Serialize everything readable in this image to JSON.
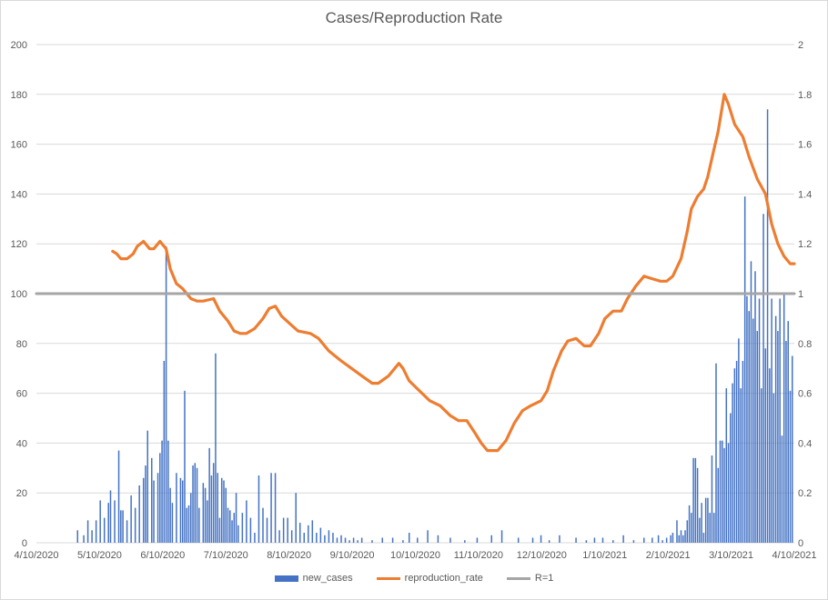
{
  "chart_data": {
    "type": "bar+line",
    "title": "Cases/Reproduction Rate",
    "x_ticks": [
      "4/10/2020",
      "5/10/2020",
      "6/10/2020",
      "7/10/2020",
      "8/10/2020",
      "9/10/2020",
      "10/10/2020",
      "11/10/2020",
      "12/10/2020",
      "1/10/2021",
      "2/10/2021",
      "3/10/2021",
      "4/10/2021"
    ],
    "x_range": [
      "2020-04-10",
      "2021-04-13"
    ],
    "y_left": {
      "min": 0,
      "max": 200,
      "step": 20,
      "ticks": [
        "0",
        "20",
        "40",
        "60",
        "80",
        "100",
        "120",
        "140",
        "160",
        "180",
        "200"
      ]
    },
    "y_right": {
      "min": 0,
      "max": 2,
      "step": 0.2,
      "ticks": [
        "0",
        "0.2",
        "0.4",
        "0.6",
        "0.8",
        "1",
        "1.2",
        "1.4",
        "1.6",
        "1.8",
        "2"
      ]
    },
    "grid": "horizontal",
    "legend_position": "bottom",
    "series": [
      {
        "name": "new_cases",
        "kind": "bar",
        "axis": "left",
        "color": "#4472c4",
        "points": [
          [
            "2020-04-30",
            5
          ],
          [
            "2020-05-03",
            3
          ],
          [
            "2020-05-05",
            9
          ],
          [
            "2020-05-07",
            5
          ],
          [
            "2020-05-09",
            9
          ],
          [
            "2020-05-11",
            17
          ],
          [
            "2020-05-13",
            10
          ],
          [
            "2020-05-15",
            16
          ],
          [
            "2020-05-16",
            21
          ],
          [
            "2020-05-18",
            17
          ],
          [
            "2020-05-20",
            37
          ],
          [
            "2020-05-21",
            13
          ],
          [
            "2020-05-22",
            13
          ],
          [
            "2020-05-24",
            9
          ],
          [
            "2020-05-26",
            19
          ],
          [
            "2020-05-28",
            14
          ],
          [
            "2020-05-30",
            23
          ],
          [
            "2020-06-01",
            26
          ],
          [
            "2020-06-02",
            31
          ],
          [
            "2020-06-03",
            45
          ],
          [
            "2020-06-05",
            34
          ],
          [
            "2020-06-06",
            25
          ],
          [
            "2020-06-08",
            28
          ],
          [
            "2020-06-09",
            36
          ],
          [
            "2020-06-10",
            41
          ],
          [
            "2020-06-11",
            73
          ],
          [
            "2020-06-12",
            119
          ],
          [
            "2020-06-13",
            41
          ],
          [
            "2020-06-14",
            22
          ],
          [
            "2020-06-15",
            16
          ],
          [
            "2020-06-17",
            28
          ],
          [
            "2020-06-19",
            26
          ],
          [
            "2020-06-20",
            25
          ],
          [
            "2020-06-21",
            61
          ],
          [
            "2020-06-22",
            14
          ],
          [
            "2020-06-23",
            15
          ],
          [
            "2020-06-24",
            20
          ],
          [
            "2020-06-25",
            31
          ],
          [
            "2020-06-26",
            32
          ],
          [
            "2020-06-27",
            30
          ],
          [
            "2020-06-28",
            14
          ],
          [
            "2020-06-30",
            24
          ],
          [
            "2020-07-01",
            22
          ],
          [
            "2020-07-02",
            17
          ],
          [
            "2020-07-03",
            38
          ],
          [
            "2020-07-04",
            27
          ],
          [
            "2020-07-05",
            32
          ],
          [
            "2020-07-06",
            76
          ],
          [
            "2020-07-07",
            28
          ],
          [
            "2020-07-08",
            10
          ],
          [
            "2020-07-09",
            26
          ],
          [
            "2020-07-10",
            25
          ],
          [
            "2020-07-11",
            22
          ],
          [
            "2020-07-12",
            14
          ],
          [
            "2020-07-13",
            13
          ],
          [
            "2020-07-14",
            9
          ],
          [
            "2020-07-15",
            12
          ],
          [
            "2020-07-16",
            20
          ],
          [
            "2020-07-17",
            7
          ],
          [
            "2020-07-19",
            12
          ],
          [
            "2020-07-21",
            17
          ],
          [
            "2020-07-23",
            10
          ],
          [
            "2020-07-25",
            4
          ],
          [
            "2020-07-27",
            27
          ],
          [
            "2020-07-29",
            14
          ],
          [
            "2020-07-31",
            10
          ],
          [
            "2020-08-02",
            28
          ],
          [
            "2020-08-04",
            28
          ],
          [
            "2020-08-06",
            5
          ],
          [
            "2020-08-08",
            10
          ],
          [
            "2020-08-10",
            10
          ],
          [
            "2020-08-12",
            5
          ],
          [
            "2020-08-14",
            20
          ],
          [
            "2020-08-16",
            8
          ],
          [
            "2020-08-18",
            4
          ],
          [
            "2020-08-20",
            7
          ],
          [
            "2020-08-22",
            9
          ],
          [
            "2020-08-24",
            4
          ],
          [
            "2020-08-26",
            6
          ],
          [
            "2020-08-28",
            3
          ],
          [
            "2020-08-30",
            5
          ],
          [
            "2020-09-01",
            4
          ],
          [
            "2020-09-03",
            2
          ],
          [
            "2020-09-05",
            3
          ],
          [
            "2020-09-07",
            2
          ],
          [
            "2020-09-09",
            1
          ],
          [
            "2020-09-11",
            2
          ],
          [
            "2020-09-13",
            1
          ],
          [
            "2020-09-15",
            2
          ],
          [
            "2020-09-20",
            1
          ],
          [
            "2020-09-25",
            2
          ],
          [
            "2020-09-30",
            2
          ],
          [
            "2020-10-05",
            1
          ],
          [
            "2020-10-08",
            4
          ],
          [
            "2020-10-12",
            2
          ],
          [
            "2020-10-17",
            5
          ],
          [
            "2020-10-22",
            3
          ],
          [
            "2020-10-28",
            2
          ],
          [
            "2020-11-04",
            1
          ],
          [
            "2020-11-10",
            2
          ],
          [
            "2020-11-17",
            3
          ],
          [
            "2020-11-22",
            5
          ],
          [
            "2020-11-30",
            2
          ],
          [
            "2020-12-07",
            2
          ],
          [
            "2020-12-11",
            3
          ],
          [
            "2020-12-15",
            1
          ],
          [
            "2020-12-20",
            3
          ],
          [
            "2020-12-28",
            2
          ],
          [
            "2021-01-02",
            1
          ],
          [
            "2021-01-06",
            2
          ],
          [
            "2021-01-10",
            2
          ],
          [
            "2021-01-15",
            1
          ],
          [
            "2021-01-20",
            3
          ],
          [
            "2021-01-25",
            1
          ],
          [
            "2021-01-30",
            2
          ],
          [
            "2021-02-03",
            2
          ],
          [
            "2021-02-06",
            3
          ],
          [
            "2021-02-08",
            1
          ],
          [
            "2021-02-10",
            2
          ],
          [
            "2021-02-12",
            3
          ],
          [
            "2021-02-13",
            4
          ],
          [
            "2021-02-15",
            9
          ],
          [
            "2021-02-16",
            3
          ],
          [
            "2021-02-17",
            5
          ],
          [
            "2021-02-18",
            3
          ],
          [
            "2021-02-19",
            5
          ],
          [
            "2021-02-20",
            9
          ],
          [
            "2021-02-21",
            15
          ],
          [
            "2021-02-22",
            12
          ],
          [
            "2021-02-23",
            34
          ],
          [
            "2021-02-24",
            34
          ],
          [
            "2021-02-25",
            30
          ],
          [
            "2021-02-26",
            10
          ],
          [
            "2021-02-27",
            16
          ],
          [
            "2021-02-28",
            4
          ],
          [
            "2021-03-01",
            18
          ],
          [
            "2021-03-02",
            18
          ],
          [
            "2021-03-03",
            12
          ],
          [
            "2021-03-04",
            35
          ],
          [
            "2021-03-05",
            12
          ],
          [
            "2021-03-06",
            72
          ],
          [
            "2021-03-07",
            30
          ],
          [
            "2021-03-08",
            41
          ],
          [
            "2021-03-09",
            41
          ],
          [
            "2021-03-10",
            38
          ],
          [
            "2021-03-11",
            62
          ],
          [
            "2021-03-12",
            40
          ],
          [
            "2021-03-13",
            52
          ],
          [
            "2021-03-14",
            64
          ],
          [
            "2021-03-15",
            70
          ],
          [
            "2021-03-16",
            73
          ],
          [
            "2021-03-17",
            82
          ],
          [
            "2021-03-18",
            62
          ],
          [
            "2021-03-19",
            73
          ],
          [
            "2021-03-20",
            139
          ],
          [
            "2021-03-21",
            99
          ],
          [
            "2021-03-22",
            93
          ],
          [
            "2021-03-23",
            113
          ],
          [
            "2021-03-24",
            90
          ],
          [
            "2021-03-25",
            109
          ],
          [
            "2021-03-26",
            85
          ],
          [
            "2021-03-27",
            98
          ],
          [
            "2021-03-28",
            62
          ],
          [
            "2021-03-29",
            132
          ],
          [
            "2021-03-30",
            78
          ],
          [
            "2021-03-31",
            174
          ],
          [
            "2021-04-01",
            70
          ],
          [
            "2021-04-02",
            98
          ],
          [
            "2021-04-03",
            60
          ],
          [
            "2021-04-04",
            91
          ],
          [
            "2021-04-05",
            85
          ],
          [
            "2021-04-06",
            98
          ],
          [
            "2021-04-07",
            43
          ],
          [
            "2021-04-08",
            100
          ],
          [
            "2021-04-09",
            81
          ],
          [
            "2021-04-10",
            89
          ],
          [
            "2021-04-11",
            61
          ],
          [
            "2021-04-12",
            75
          ]
        ]
      },
      {
        "name": "reproduction_rate",
        "kind": "line",
        "axis": "right",
        "color": "#ed7d31",
        "points": [
          [
            "2020-05-17",
            1.17
          ],
          [
            "2020-05-19",
            1.16
          ],
          [
            "2020-05-21",
            1.14
          ],
          [
            "2020-05-24",
            1.14
          ],
          [
            "2020-05-27",
            1.16
          ],
          [
            "2020-05-29",
            1.19
          ],
          [
            "2020-06-01",
            1.21
          ],
          [
            "2020-06-04",
            1.18
          ],
          [
            "2020-06-06",
            1.18
          ],
          [
            "2020-06-09",
            1.21
          ],
          [
            "2020-06-12",
            1.18
          ],
          [
            "2020-06-14",
            1.1
          ],
          [
            "2020-06-17",
            1.04
          ],
          [
            "2020-06-20",
            1.02
          ],
          [
            "2020-06-24",
            0.98
          ],
          [
            "2020-06-27",
            0.97
          ],
          [
            "2020-06-30",
            0.97
          ],
          [
            "2020-07-05",
            0.98
          ],
          [
            "2020-07-08",
            0.93
          ],
          [
            "2020-07-12",
            0.89
          ],
          [
            "2020-07-15",
            0.85
          ],
          [
            "2020-07-18",
            0.84
          ],
          [
            "2020-07-21",
            0.84
          ],
          [
            "2020-07-25",
            0.86
          ],
          [
            "2020-07-29",
            0.9
          ],
          [
            "2020-08-01",
            0.94
          ],
          [
            "2020-08-04",
            0.95
          ],
          [
            "2020-08-07",
            0.91
          ],
          [
            "2020-08-11",
            0.88
          ],
          [
            "2020-08-15",
            0.85
          ],
          [
            "2020-08-21",
            0.84
          ],
          [
            "2020-08-25",
            0.82
          ],
          [
            "2020-08-30",
            0.77
          ],
          [
            "2020-09-05",
            0.73
          ],
          [
            "2020-09-10",
            0.7
          ],
          [
            "2020-09-15",
            0.67
          ],
          [
            "2020-09-20",
            0.64
          ],
          [
            "2020-09-23",
            0.64
          ],
          [
            "2020-09-28",
            0.67
          ],
          [
            "2020-10-03",
            0.72
          ],
          [
            "2020-10-05",
            0.7
          ],
          [
            "2020-10-08",
            0.65
          ],
          [
            "2020-10-13",
            0.61
          ],
          [
            "2020-10-18",
            0.57
          ],
          [
            "2020-10-23",
            0.55
          ],
          [
            "2020-10-28",
            0.51
          ],
          [
            "2020-11-01",
            0.49
          ],
          [
            "2020-11-05",
            0.49
          ],
          [
            "2020-11-09",
            0.44
          ],
          [
            "2020-11-12",
            0.4
          ],
          [
            "2020-11-15",
            0.37
          ],
          [
            "2020-11-20",
            0.37
          ],
          [
            "2020-11-24",
            0.41
          ],
          [
            "2020-11-28",
            0.48
          ],
          [
            "2020-12-02",
            0.53
          ],
          [
            "2020-12-06",
            0.55
          ],
          [
            "2020-12-11",
            0.57
          ],
          [
            "2020-12-14",
            0.61
          ],
          [
            "2020-12-17",
            0.69
          ],
          [
            "2020-12-21",
            0.77
          ],
          [
            "2020-12-24",
            0.81
          ],
          [
            "2020-12-28",
            0.82
          ],
          [
            "2021-01-01",
            0.79
          ],
          [
            "2021-01-04",
            0.79
          ],
          [
            "2021-01-08",
            0.84
          ],
          [
            "2021-01-11",
            0.9
          ],
          [
            "2021-01-15",
            0.93
          ],
          [
            "2021-01-19",
            0.93
          ],
          [
            "2021-01-22",
            0.98
          ],
          [
            "2021-01-26",
            1.03
          ],
          [
            "2021-01-30",
            1.07
          ],
          [
            "2021-02-03",
            1.06
          ],
          [
            "2021-02-07",
            1.05
          ],
          [
            "2021-02-10",
            1.05
          ],
          [
            "2021-02-13",
            1.07
          ],
          [
            "2021-02-17",
            1.14
          ],
          [
            "2021-02-20",
            1.25
          ],
          [
            "2021-02-22",
            1.34
          ],
          [
            "2021-02-25",
            1.39
          ],
          [
            "2021-02-28",
            1.42
          ],
          [
            "2021-03-02",
            1.47
          ],
          [
            "2021-03-05",
            1.58
          ],
          [
            "2021-03-07",
            1.65
          ],
          [
            "2021-03-10",
            1.8
          ],
          [
            "2021-03-12",
            1.76
          ],
          [
            "2021-03-15",
            1.68
          ],
          [
            "2021-03-19",
            1.63
          ],
          [
            "2021-03-22",
            1.55
          ],
          [
            "2021-03-26",
            1.46
          ],
          [
            "2021-03-30",
            1.4
          ],
          [
            "2021-04-02",
            1.28
          ],
          [
            "2021-04-05",
            1.2
          ],
          [
            "2021-04-08",
            1.15
          ],
          [
            "2021-04-11",
            1.12
          ],
          [
            "2021-04-13",
            1.12
          ]
        ]
      },
      {
        "name": "R=1",
        "kind": "line",
        "axis": "right",
        "color": "#a5a5a5",
        "points": [
          [
            "2020-04-10",
            1
          ],
          [
            "2021-04-13",
            1
          ]
        ]
      }
    ]
  }
}
